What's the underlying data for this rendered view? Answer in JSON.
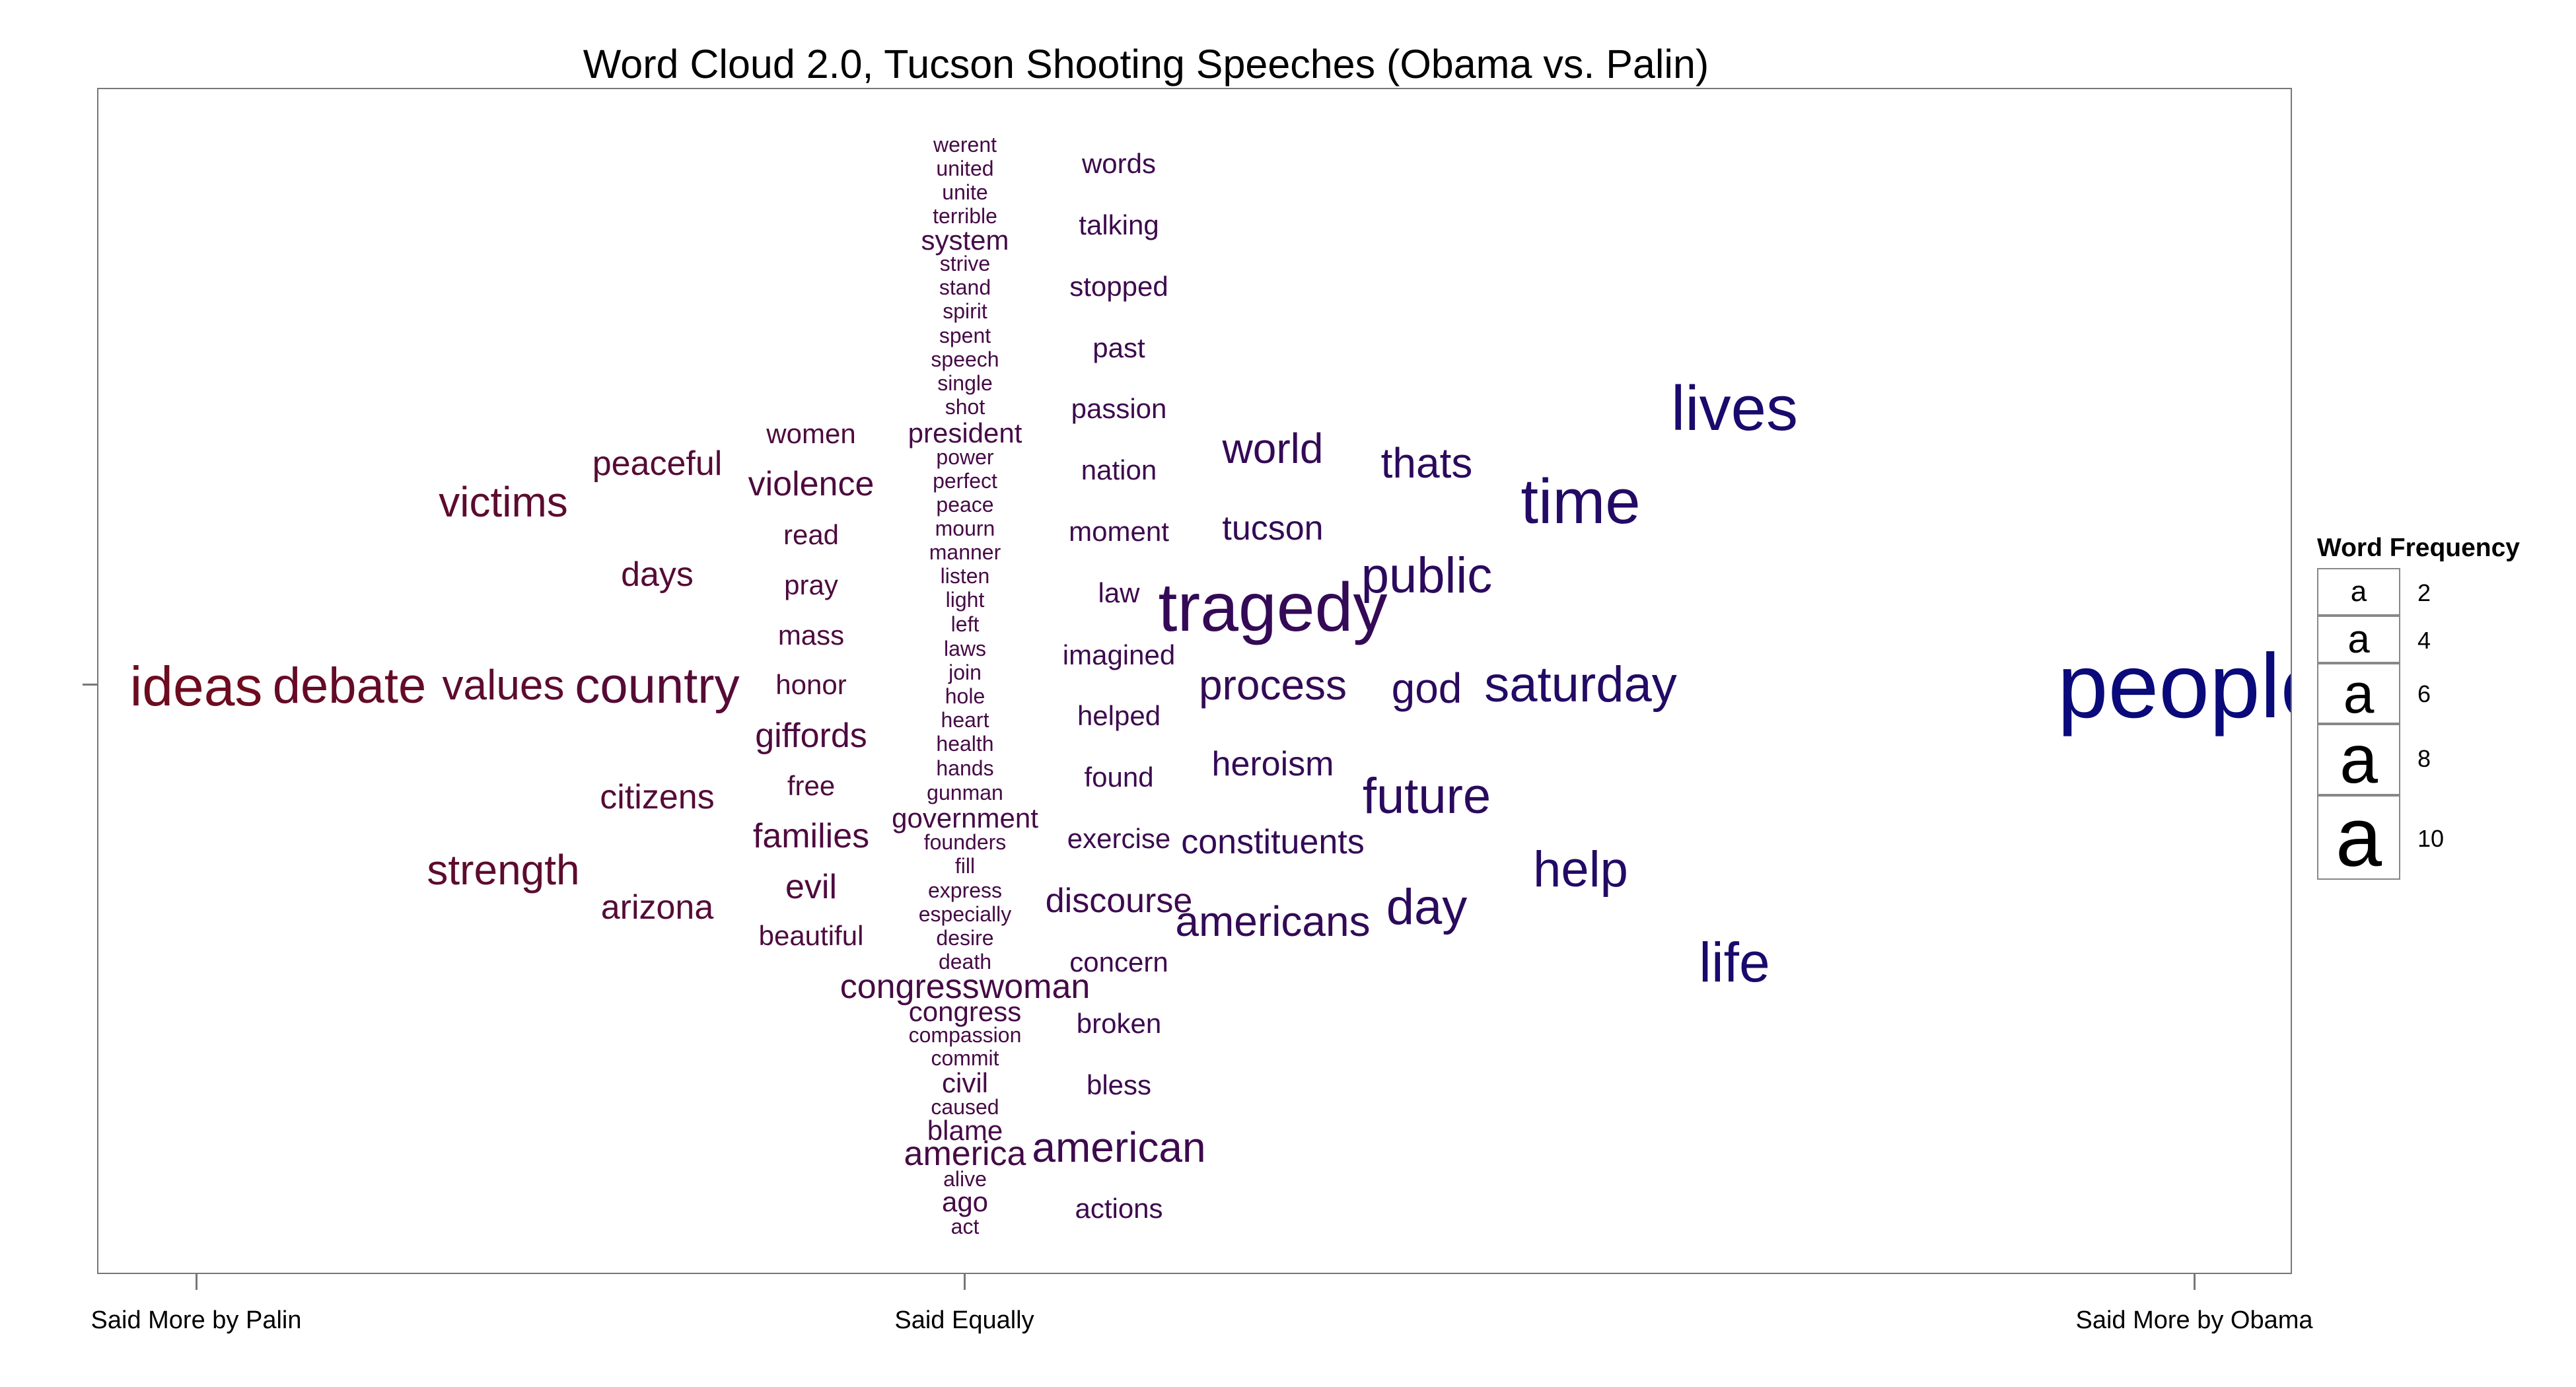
{
  "chart_data": {
    "type": "word_cloud",
    "title": "Word Cloud 2.0, Tucson Shooting Speeches (Obama vs. Palin)",
    "x_axis": {
      "tick_labels": [
        "Said More by Palin",
        "Said Equally",
        "Said More by Obama"
      ],
      "tick_values": [
        -1,
        0,
        1
      ]
    },
    "legend": {
      "title": "Word Frequency",
      "symbol": "a",
      "values": [
        2,
        4,
        6,
        8,
        10
      ]
    },
    "colors": {
      "palin": "#7a0c12",
      "obama": "#0a0a7a"
    },
    "words": [
      {
        "text": "werent",
        "lean": 0,
        "freq": 1
      },
      {
        "text": "united",
        "lean": 0,
        "freq": 1
      },
      {
        "text": "unite",
        "lean": 0,
        "freq": 1
      },
      {
        "text": "terrible",
        "lean": 0,
        "freq": 1
      },
      {
        "text": "system",
        "lean": 0,
        "freq": 2
      },
      {
        "text": "strive",
        "lean": 0,
        "freq": 1
      },
      {
        "text": "stand",
        "lean": 0,
        "freq": 1
      },
      {
        "text": "spirit",
        "lean": 0,
        "freq": 1
      },
      {
        "text": "spent",
        "lean": 0,
        "freq": 1
      },
      {
        "text": "speech",
        "lean": 0,
        "freq": 1
      },
      {
        "text": "single",
        "lean": 0,
        "freq": 1
      },
      {
        "text": "shot",
        "lean": 0,
        "freq": 1
      },
      {
        "text": "president",
        "lean": 0,
        "freq": 2
      },
      {
        "text": "power",
        "lean": 0,
        "freq": 1
      },
      {
        "text": "perfect",
        "lean": 0,
        "freq": 1
      },
      {
        "text": "peace",
        "lean": 0,
        "freq": 1
      },
      {
        "text": "mourn",
        "lean": 0,
        "freq": 1
      },
      {
        "text": "manner",
        "lean": 0,
        "freq": 1
      },
      {
        "text": "listen",
        "lean": 0,
        "freq": 1
      },
      {
        "text": "light",
        "lean": 0,
        "freq": 1
      },
      {
        "text": "left",
        "lean": 0,
        "freq": 1
      },
      {
        "text": "laws",
        "lean": 0,
        "freq": 1
      },
      {
        "text": "join",
        "lean": 0,
        "freq": 1
      },
      {
        "text": "hole",
        "lean": 0,
        "freq": 1
      },
      {
        "text": "heart",
        "lean": 0,
        "freq": 1
      },
      {
        "text": "health",
        "lean": 0,
        "freq": 1
      },
      {
        "text": "hands",
        "lean": 0,
        "freq": 1
      },
      {
        "text": "gunman",
        "lean": 0,
        "freq": 1
      },
      {
        "text": "government",
        "lean": 0,
        "freq": 2
      },
      {
        "text": "founders",
        "lean": 0,
        "freq": 1
      },
      {
        "text": "fill",
        "lean": 0,
        "freq": 1
      },
      {
        "text": "express",
        "lean": 0,
        "freq": 1
      },
      {
        "text": "especially",
        "lean": 0,
        "freq": 1
      },
      {
        "text": "desire",
        "lean": 0,
        "freq": 1
      },
      {
        "text": "death",
        "lean": 0,
        "freq": 1
      },
      {
        "text": "congresswoman",
        "lean": 0,
        "freq": 3
      },
      {
        "text": "congress",
        "lean": 0,
        "freq": 2
      },
      {
        "text": "compassion",
        "lean": 0,
        "freq": 1
      },
      {
        "text": "commit",
        "lean": 0,
        "freq": 1
      },
      {
        "text": "civil",
        "lean": 0,
        "freq": 2
      },
      {
        "text": "caused",
        "lean": 0,
        "freq": 1
      },
      {
        "text": "blame",
        "lean": 0,
        "freq": 2
      },
      {
        "text": "america",
        "lean": 0,
        "freq": 3
      },
      {
        "text": "alive",
        "lean": 0,
        "freq": 1
      },
      {
        "text": "ago",
        "lean": 0,
        "freq": 2
      },
      {
        "text": "act",
        "lean": 0,
        "freq": 1
      },
      {
        "text": "words",
        "lean": 0.15,
        "freq": 2
      },
      {
        "text": "talking",
        "lean": 0.15,
        "freq": 2
      },
      {
        "text": "stopped",
        "lean": 0.15,
        "freq": 2
      },
      {
        "text": "past",
        "lean": 0.15,
        "freq": 2
      },
      {
        "text": "passion",
        "lean": 0.15,
        "freq": 2
      },
      {
        "text": "nation",
        "lean": 0.15,
        "freq": 2
      },
      {
        "text": "moment",
        "lean": 0.15,
        "freq": 2
      },
      {
        "text": "law",
        "lean": 0.15,
        "freq": 2
      },
      {
        "text": "imagined",
        "lean": 0.15,
        "freq": 2
      },
      {
        "text": "helped",
        "lean": 0.15,
        "freq": 2
      },
      {
        "text": "found",
        "lean": 0.15,
        "freq": 2
      },
      {
        "text": "exercise",
        "lean": 0.15,
        "freq": 2
      },
      {
        "text": "discourse",
        "lean": 0.15,
        "freq": 3
      },
      {
        "text": "concern",
        "lean": 0.15,
        "freq": 2
      },
      {
        "text": "broken",
        "lean": 0.15,
        "freq": 2
      },
      {
        "text": "bless",
        "lean": 0.15,
        "freq": 2
      },
      {
        "text": "american",
        "lean": 0.15,
        "freq": 4
      },
      {
        "text": "actions",
        "lean": 0.15,
        "freq": 2
      },
      {
        "text": "world",
        "lean": 0.3,
        "freq": 4
      },
      {
        "text": "tucson",
        "lean": 0.3,
        "freq": 3
      },
      {
        "text": "tragedy",
        "lean": 0.3,
        "freq": 8
      },
      {
        "text": "process",
        "lean": 0.3,
        "freq": 4
      },
      {
        "text": "heroism",
        "lean": 0.3,
        "freq": 3
      },
      {
        "text": "constituents",
        "lean": 0.3,
        "freq": 3
      },
      {
        "text": "americans",
        "lean": 0.3,
        "freq": 4
      },
      {
        "text": "thats",
        "lean": 0.45,
        "freq": 4
      },
      {
        "text": "public",
        "lean": 0.45,
        "freq": 5
      },
      {
        "text": "god",
        "lean": 0.45,
        "freq": 4
      },
      {
        "text": "future",
        "lean": 0.45,
        "freq": 5
      },
      {
        "text": "day",
        "lean": 0.45,
        "freq": 5
      },
      {
        "text": "time",
        "lean": 0.6,
        "freq": 7
      },
      {
        "text": "saturday",
        "lean": 0.6,
        "freq": 5
      },
      {
        "text": "help",
        "lean": 0.6,
        "freq": 5
      },
      {
        "text": "lives",
        "lean": 0.75,
        "freq": 7
      },
      {
        "text": "life",
        "lean": 0.75,
        "freq": 6
      },
      {
        "text": "people",
        "lean": 1,
        "freq": 10
      },
      {
        "text": "women",
        "lean": -0.15,
        "freq": 2
      },
      {
        "text": "violence",
        "lean": -0.15,
        "freq": 3
      },
      {
        "text": "read",
        "lean": -0.15,
        "freq": 2
      },
      {
        "text": "pray",
        "lean": -0.15,
        "freq": 2
      },
      {
        "text": "mass",
        "lean": -0.15,
        "freq": 2
      },
      {
        "text": "honor",
        "lean": -0.15,
        "freq": 2
      },
      {
        "text": "giffords",
        "lean": -0.15,
        "freq": 3
      },
      {
        "text": "free",
        "lean": -0.15,
        "freq": 2
      },
      {
        "text": "families",
        "lean": -0.15,
        "freq": 3
      },
      {
        "text": "evil",
        "lean": -0.15,
        "freq": 3
      },
      {
        "text": "beautiful",
        "lean": -0.15,
        "freq": 2
      },
      {
        "text": "peaceful",
        "lean": -0.3,
        "freq": 3
      },
      {
        "text": "days",
        "lean": -0.3,
        "freq": 3
      },
      {
        "text": "country",
        "lean": -0.3,
        "freq": 5
      },
      {
        "text": "citizens",
        "lean": -0.3,
        "freq": 3
      },
      {
        "text": "arizona",
        "lean": -0.3,
        "freq": 3
      },
      {
        "text": "victims",
        "lean": -0.45,
        "freq": 4
      },
      {
        "text": "values",
        "lean": -0.45,
        "freq": 4
      },
      {
        "text": "strength",
        "lean": -0.45,
        "freq": 4
      },
      {
        "text": "debate",
        "lean": -0.6,
        "freq": 5
      },
      {
        "text": "ideas",
        "lean": -0.75,
        "freq": 6
      }
    ]
  }
}
